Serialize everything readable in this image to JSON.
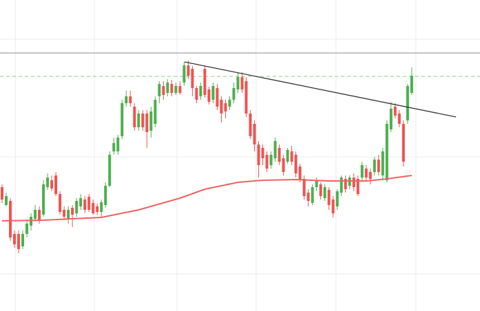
{
  "chart_data": {
    "type": "candlestick",
    "xlim": [
      -0.5,
      115.5
    ],
    "ylim": [
      0,
      452
    ],
    "xticks": [
      3.2,
      22.3,
      42.3,
      61.4,
      80.7,
      100
    ],
    "yticks": [
      54,
      224,
      395
    ],
    "grid": true,
    "up_color": "#4caf50",
    "down_color": "#ef5350",
    "open": [
      180,
      154,
      160,
      112,
      112,
      94,
      112,
      124,
      134,
      147,
      140,
      180,
      190,
      197,
      170,
      147,
      134,
      150,
      142,
      152,
      162,
      166,
      157,
      152,
      144,
      154,
      182,
      232,
      232,
      254,
      302,
      312,
      297,
      267,
      287,
      287,
      262,
      272,
      312,
      327,
      317,
      330,
      317,
      327,
      332,
      357,
      352,
      324,
      312,
      352,
      322,
      307,
      324,
      307,
      302,
      297,
      307,
      322,
      340,
      334,
      287,
      272,
      242,
      237,
      227,
      212,
      222,
      237,
      222,
      217,
      232,
      227,
      210,
      192,
      172,
      157,
      180,
      184,
      164,
      176,
      162,
      152,
      172,
      192,
      182,
      194,
      192,
      194,
      207,
      202,
      202,
      220,
      197,
      190,
      264,
      297,
      287,
      272,
      277,
      317
    ],
    "high": [
      184,
      172,
      164,
      117,
      117,
      117,
      132,
      142,
      154,
      152,
      190,
      200,
      197,
      202,
      174,
      152,
      152,
      154,
      164,
      170,
      167,
      170,
      162,
      156,
      162,
      187,
      232,
      252,
      256,
      307,
      320,
      320,
      302,
      292,
      292,
      292,
      297,
      312,
      334,
      334,
      337,
      336,
      332,
      334,
      362,
      364,
      356,
      327,
      332,
      356,
      326,
      332,
      330,
      312,
      307,
      312,
      332,
      347,
      347,
      340,
      292,
      277,
      247,
      242,
      232,
      232,
      252,
      242,
      227,
      237,
      240,
      232,
      214,
      197,
      177,
      184,
      194,
      187,
      184,
      180,
      167,
      177,
      197,
      197,
      197,
      200,
      197,
      217,
      212,
      207,
      224,
      227,
      237,
      277,
      304,
      302,
      292,
      277,
      330,
      354
    ],
    "low": [
      157,
      152,
      102,
      92,
      84,
      90,
      107,
      117,
      130,
      127,
      137,
      176,
      174,
      167,
      140,
      132,
      127,
      122,
      137,
      147,
      142,
      144,
      140,
      140,
      137,
      150,
      180,
      227,
      227,
      250,
      297,
      297,
      262,
      262,
      262,
      237,
      252,
      267,
      302,
      307,
      312,
      312,
      314,
      314,
      327,
      337,
      312,
      302,
      307,
      310,
      300,
      302,
      292,
      274,
      280,
      292,
      302,
      317,
      317,
      282,
      250,
      232,
      194,
      212,
      202,
      207,
      217,
      212,
      197,
      214,
      212,
      194,
      187,
      162,
      152,
      154,
      174,
      162,
      160,
      147,
      136,
      147,
      167,
      172,
      177,
      174,
      167,
      190,
      190,
      184,
      197,
      197,
      190,
      187,
      260,
      280,
      267,
      210,
      272,
      314
    ],
    "close": [
      162,
      167,
      107,
      97,
      90,
      112,
      127,
      137,
      147,
      132,
      184,
      194,
      178,
      170,
      144,
      137,
      147,
      140,
      160,
      164,
      147,
      147,
      142,
      144,
      158,
      182,
      227,
      244,
      252,
      302,
      312,
      302,
      267,
      287,
      267,
      260,
      290,
      307,
      330,
      314,
      332,
      317,
      327,
      317,
      357,
      342,
      324,
      307,
      327,
      314,
      304,
      327,
      297,
      287,
      290,
      307,
      324,
      340,
      322,
      287,
      254,
      242,
      212,
      222,
      207,
      227,
      247,
      217,
      202,
      234,
      217,
      200,
      190,
      167,
      160,
      180,
      190,
      167,
      180,
      154,
      142,
      174,
      194,
      177,
      194,
      180,
      170,
      212,
      194,
      192,
      220,
      202,
      232,
      272,
      294,
      284,
      272,
      217,
      327,
      342
    ],
    "moving_average": {
      "color": "#f06060",
      "x": [
        0,
        10,
        24,
        33,
        43,
        49,
        57,
        63,
        71,
        79,
        88,
        93,
        99
      ],
      "values": [
        131,
        132,
        136,
        147,
        164,
        177,
        187,
        190,
        191,
        189,
        189,
        192,
        197
      ]
    },
    "trendline": {
      "color": "#333333",
      "x": [
        44.1,
        109.7
      ],
      "values": [
        362,
        282
      ]
    },
    "levels": [
      {
        "value": 375,
        "color": "#888888",
        "style": "solid"
      },
      {
        "value": 341,
        "color": "#7fcf7f",
        "style": "dashed"
      }
    ]
  }
}
